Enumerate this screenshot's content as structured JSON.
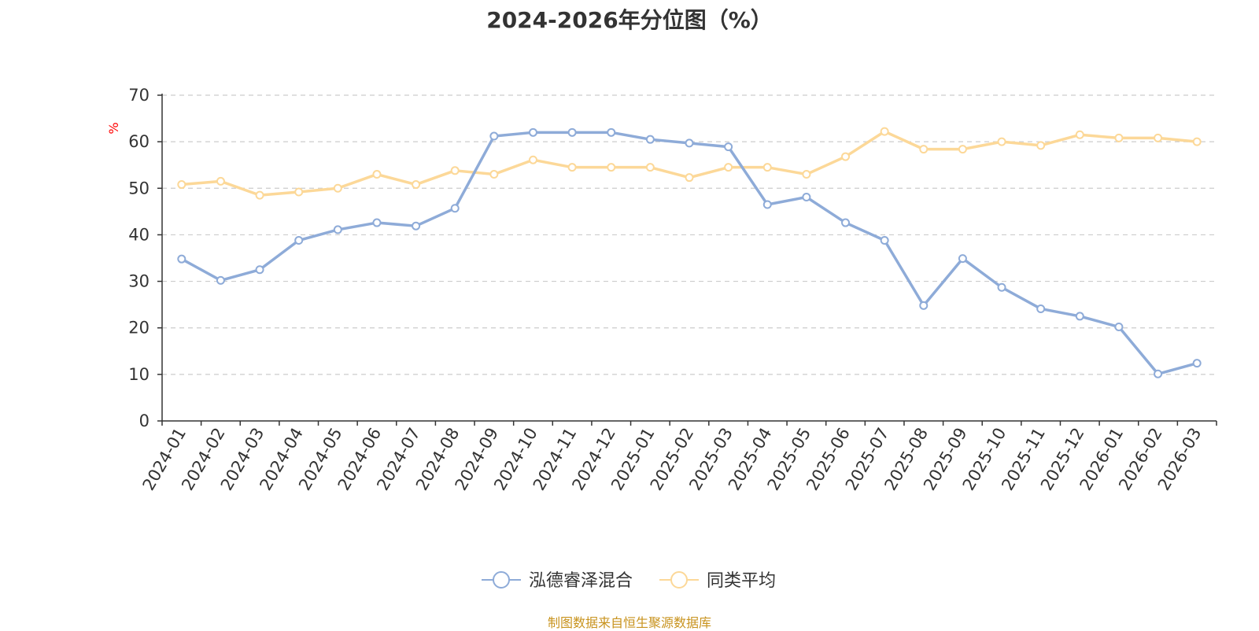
{
  "chart_data": {
    "type": "line",
    "title": "2024-2026年分位图（%）",
    "ylabel": "%",
    "xlabel": "",
    "ylim": [
      0,
      70
    ],
    "yticks": [
      0,
      10,
      20,
      30,
      40,
      50,
      60,
      70
    ],
    "grid": true,
    "legend_position": "bottom-center",
    "categories": [
      "2024-01",
      "2024-02",
      "2024-03",
      "2024-04",
      "2024-05",
      "2024-06",
      "2024-07",
      "2024-08",
      "2024-09",
      "2024-10",
      "2024-11",
      "2024-12",
      "2025-01",
      "2025-02",
      "2025-03",
      "2025-04",
      "2025-05",
      "2025-06",
      "2025-07",
      "2025-08",
      "2025-09",
      "2025-10",
      "2025-11",
      "2025-12",
      "2026-01",
      "2026-02",
      "2026-03"
    ],
    "series": [
      {
        "name": "泓德睿泽混合",
        "color": "#8eabd8",
        "values": [
          34.8,
          30.2,
          32.5,
          38.8,
          41.1,
          42.6,
          41.9,
          45.7,
          61.2,
          62.0,
          62.0,
          62.0,
          60.5,
          59.7,
          58.9,
          46.5,
          48.1,
          42.6,
          38.8,
          24.8,
          34.9,
          28.7,
          24.1,
          22.5,
          20.2,
          10.1,
          12.4
        ]
      },
      {
        "name": "同类平均",
        "color": "#fcd898",
        "values": [
          50.8,
          51.5,
          48.5,
          49.2,
          50.0,
          53.0,
          50.8,
          53.8,
          53.0,
          56.1,
          54.5,
          54.5,
          54.5,
          52.3,
          54.5,
          54.5,
          53.0,
          56.8,
          62.2,
          58.4,
          58.4,
          60.0,
          59.2,
          61.5,
          60.8,
          60.8,
          60.0
        ]
      }
    ]
  },
  "footer": {
    "source": "制图数据来自恒生聚源数据库"
  }
}
